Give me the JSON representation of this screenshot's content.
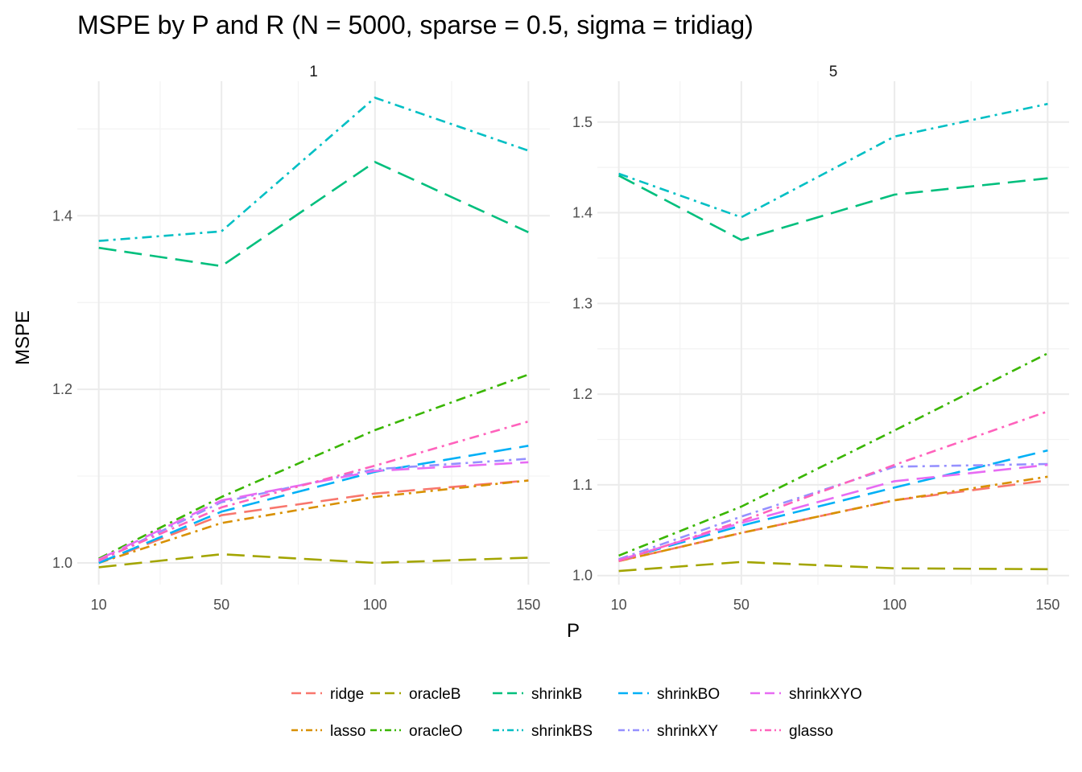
{
  "chart_data": {
    "type": "line",
    "title": "MSPE by P and R (N = 5000, sparse = 0.5, sigma = tridiag)",
    "xlabel": "P",
    "ylabel": "MSPE",
    "x": [
      10,
      50,
      100,
      150
    ],
    "legend_position": "bottom",
    "grid": true,
    "legend_order": [
      "ridge",
      "lasso",
      "oracleB",
      "oracleO",
      "shrinkB",
      "shrinkBS",
      "shrinkBO",
      "shrinkXY",
      "shrinkXYO",
      "glasso"
    ],
    "series_styles": {
      "ridge": {
        "color": "#F8766D",
        "dash": "longdash"
      },
      "lasso": {
        "color": "#D89000",
        "dash": "dotdash"
      },
      "oracleB": {
        "color": "#A3A500",
        "dash": "longdash"
      },
      "oracleO": {
        "color": "#39B600",
        "dash": "dotdash"
      },
      "shrinkB": {
        "color": "#00BF7D",
        "dash": "longdash"
      },
      "shrinkBS": {
        "color": "#00BFC4",
        "dash": "dotdash"
      },
      "shrinkBO": {
        "color": "#00B0F6",
        "dash": "longdash"
      },
      "shrinkXY": {
        "color": "#9590FF",
        "dash": "dotdash"
      },
      "shrinkXYO": {
        "color": "#E76BF3",
        "dash": "longdash"
      },
      "glasso": {
        "color": "#FF62BC",
        "dash": "dotdash"
      }
    },
    "panels": [
      {
        "strip": "1",
        "ylim": [
          0.975,
          1.555
        ],
        "yticks": [
          1.0,
          1.2,
          1.4
        ],
        "ytick_labels": [
          "1.0",
          "1.2",
          "1.4"
        ],
        "yminor": [
          1.1,
          1.3,
          1.5
        ],
        "series": [
          {
            "name": "ridge",
            "values": [
              1.0,
              1.055,
              1.08,
              1.095
            ]
          },
          {
            "name": "lasso",
            "values": [
              1.0,
              1.046,
              1.076,
              1.095
            ]
          },
          {
            "name": "oracleB",
            "values": [
              0.995,
              1.01,
              1.0,
              1.006
            ]
          },
          {
            "name": "oracleO",
            "values": [
              1.005,
              1.076,
              1.153,
              1.217
            ]
          },
          {
            "name": "shrinkB",
            "values": [
              1.363,
              1.342,
              1.462,
              1.381
            ]
          },
          {
            "name": "shrinkBS",
            "values": [
              1.371,
              1.382,
              1.536,
              1.475
            ]
          },
          {
            "name": "shrinkBO",
            "values": [
              1.0,
              1.059,
              1.105,
              1.135
            ]
          },
          {
            "name": "shrinkXY",
            "values": [
              1.002,
              1.07,
              1.108,
              1.12
            ]
          },
          {
            "name": "shrinkXYO",
            "values": [
              1.004,
              1.072,
              1.106,
              1.116
            ]
          },
          {
            "name": "glasso",
            "values": [
              1.003,
              1.064,
              1.112,
              1.163
            ]
          }
        ]
      },
      {
        "strip": "5",
        "ylim": [
          0.99,
          1.545
        ],
        "yticks": [
          1.0,
          1.1,
          1.2,
          1.3,
          1.4,
          1.5
        ],
        "ytick_labels": [
          "1.0",
          "1.1",
          "1.2",
          "1.3",
          "1.4",
          "1.5"
        ],
        "yminor": [
          1.05,
          1.15,
          1.25,
          1.35,
          1.45
        ],
        "series": [
          {
            "name": "ridge",
            "values": [
              1.016,
              1.047,
              1.083,
              1.105
            ]
          },
          {
            "name": "lasso",
            "values": [
              1.016,
              1.047,
              1.083,
              1.109
            ]
          },
          {
            "name": "oracleB",
            "values": [
              1.005,
              1.015,
              1.008,
              1.007
            ]
          },
          {
            "name": "oracleO",
            "values": [
              1.022,
              1.076,
              1.16,
              1.245
            ]
          },
          {
            "name": "shrinkB",
            "values": [
              1.441,
              1.37,
              1.42,
              1.438
            ]
          },
          {
            "name": "shrinkBS",
            "values": [
              1.443,
              1.395,
              1.484,
              1.52
            ]
          },
          {
            "name": "shrinkBO",
            "values": [
              1.017,
              1.055,
              1.097,
              1.138
            ]
          },
          {
            "name": "shrinkXY",
            "values": [
              1.018,
              1.065,
              1.12,
              1.123
            ]
          },
          {
            "name": "shrinkXYO",
            "values": [
              1.017,
              1.058,
              1.104,
              1.122
            ]
          },
          {
            "name": "glasso",
            "values": [
              1.016,
              1.06,
              1.122,
              1.181
            ]
          }
        ]
      }
    ],
    "xticks": [
      10,
      50,
      100,
      150
    ],
    "xtick_labels": [
      "10",
      "50",
      "100",
      "150"
    ],
    "xminor": [
      30,
      75,
      125
    ]
  }
}
